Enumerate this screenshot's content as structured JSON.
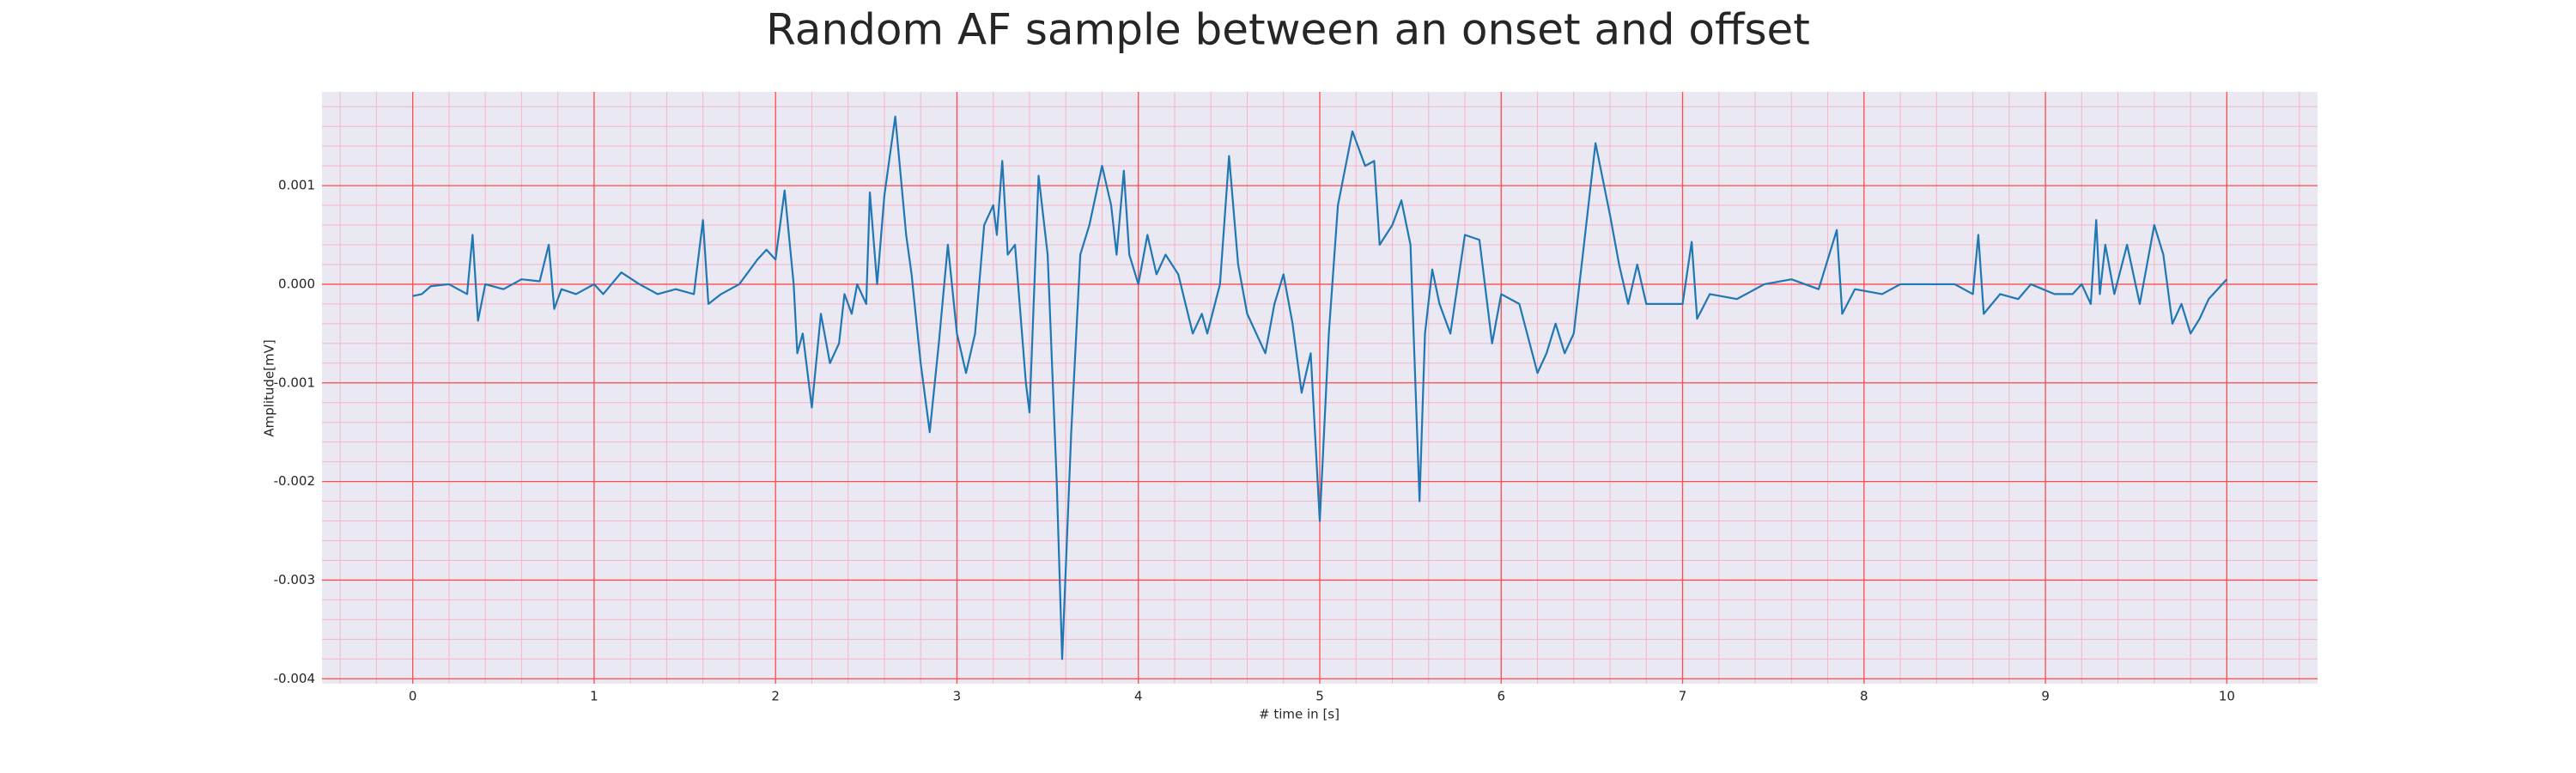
{
  "chart_data": {
    "type": "line",
    "title": "Random AF sample between an onset and offset",
    "xlabel": "# time in [s]",
    "ylabel": "Amplitude[mV]",
    "xlim": [
      -0.5,
      10.5
    ],
    "ylim": [
      -0.00405,
      0.00195
    ],
    "xticks": [
      0,
      1,
      2,
      3,
      4,
      5,
      6,
      7,
      8,
      9,
      10
    ],
    "yticks": [
      0.001,
      {
        "value": 0,
        "label": "0.000"
      },
      -0.001,
      -0.002,
      -0.003,
      -0.004
    ],
    "grid": true,
    "grid_color": "#ff4d4d",
    "minor_grid": {
      "divisions": 5,
      "color": "#f4b6c6"
    },
    "background": "#eae8f2",
    "x": [
      0,
      0.05,
      0.1,
      0.2,
      0.25,
      0.3,
      0.33,
      0.36,
      0.4,
      0.5,
      0.6,
      0.7,
      0.75,
      0.78,
      0.82,
      0.9,
      1.0,
      1.05,
      1.15,
      1.25,
      1.35,
      1.45,
      1.55,
      1.6,
      1.63,
      1.7,
      1.8,
      1.9,
      1.95,
      2.0,
      2.05,
      2.1,
      2.12,
      2.15,
      2.2,
      2.25,
      2.3,
      2.35,
      2.38,
      2.42,
      2.45,
      2.5,
      2.52,
      2.56,
      2.6,
      2.66,
      2.72,
      2.75,
      2.8,
      2.85,
      2.9,
      2.95,
      3.0,
      3.05,
      3.1,
      3.15,
      3.2,
      3.22,
      3.25,
      3.28,
      3.32,
      3.38,
      3.4,
      3.45,
      3.5,
      3.55,
      3.58,
      3.63,
      3.68,
      3.73,
      3.8,
      3.85,
      3.88,
      3.92,
      3.95,
      4.0,
      4.05,
      4.1,
      4.15,
      4.22,
      4.3,
      4.35,
      4.38,
      4.45,
      4.5,
      4.55,
      4.6,
      4.7,
      4.75,
      4.8,
      4.85,
      4.9,
      4.95,
      5.0,
      5.05,
      5.1,
      5.18,
      5.25,
      5.3,
      5.33,
      5.4,
      5.45,
      5.5,
      5.55,
      5.58,
      5.62,
      5.66,
      5.72,
      5.8,
      5.88,
      5.95,
      6.0,
      6.1,
      6.2,
      6.25,
      6.3,
      6.35,
      6.4,
      6.45,
      6.52,
      6.6,
      6.65,
      6.7,
      6.75,
      6.8,
      6.9,
      7.0,
      7.05,
      7.08,
      7.15,
      7.3,
      7.45,
      7.6,
      7.75,
      7.85,
      7.88,
      7.95,
      8.1,
      8.2,
      8.3,
      8.5,
      8.6,
      8.63,
      8.66,
      8.75,
      8.85,
      8.92,
      9.05,
      9.15,
      9.2,
      9.25,
      9.28,
      9.3,
      9.33,
      9.38,
      9.45,
      9.52,
      9.6,
      9.65,
      9.7,
      9.75,
      9.8,
      9.85,
      9.9,
      10.0
    ],
    "series": [
      {
        "color": "#1f77b4",
        "values": [
          -0.00012,
          -0.0001,
          -2e-05,
          0.0,
          -5e-05,
          -0.0001,
          0.0005,
          -0.00037,
          0.0,
          -5e-05,
          5e-05,
          3e-05,
          0.0004,
          -0.00025,
          -5e-05,
          -0.0001,
          0.0,
          -0.0001,
          0.00012,
          0.0,
          -0.0001,
          -5e-05,
          -0.0001,
          0.00065,
          -0.0002,
          -0.0001,
          0.0,
          0.00025,
          0.00035,
          0.00025,
          0.00095,
          0.0,
          -0.0007,
          -0.0005,
          -0.00125,
          -0.0003,
          -0.0008,
          -0.0006,
          -0.0001,
          -0.0003,
          0.0,
          -0.0002,
          0.00093,
          0.0,
          0.0009,
          0.0017,
          0.0005,
          0.0001,
          -0.0008,
          -0.0015,
          -0.0006,
          0.0004,
          -0.0005,
          -0.0009,
          -0.0005,
          0.0006,
          0.0008,
          0.0005,
          0.00125,
          0.0003,
          0.0004,
          -0.001,
          -0.0013,
          0.0011,
          0.0003,
          -0.002,
          -0.0038,
          -0.0015,
          0.0003,
          0.0006,
          0.0012,
          0.0008,
          0.0003,
          0.00115,
          0.0003,
          0.0,
          0.0005,
          0.0001,
          0.0003,
          0.0001,
          -0.0005,
          -0.0003,
          -0.0005,
          0.0,
          0.0013,
          0.0002,
          -0.0003,
          -0.0007,
          -0.0002,
          0.0001,
          -0.0004,
          -0.0011,
          -0.0007,
          -0.0024,
          -0.0005,
          0.0008,
          0.00155,
          0.0012,
          0.00125,
          0.0004,
          0.0006,
          0.00085,
          0.0004,
          -0.0022,
          -0.0005,
          0.00015,
          -0.0002,
          -0.0005,
          0.0005,
          0.00045,
          -0.0006,
          -0.0001,
          -0.0002,
          -0.0009,
          -0.0007,
          -0.0004,
          -0.0007,
          -0.0005,
          0.0003,
          0.00143,
          0.0007,
          0.0002,
          -0.0002,
          0.0002,
          -0.0002,
          -0.0002,
          -0.0002,
          0.00043,
          -0.00035,
          -0.0001,
          -0.00015,
          0.0,
          5e-05,
          -5e-05,
          0.00055,
          -0.0003,
          -5e-05,
          -0.0001,
          0.0,
          0.0,
          0.0,
          -0.0001,
          0.0005,
          -0.0003,
          -0.0001,
          -0.00015,
          0.0,
          -0.0001,
          -0.0001,
          0.0,
          -0.0002,
          0.00065,
          -0.0001,
          0.0004,
          -0.0001,
          0.0004,
          -0.0002,
          0.0006,
          0.0003,
          -0.0004,
          -0.0002,
          -0.0005,
          -0.00035,
          -0.00015,
          5e-05
        ]
      }
    ]
  }
}
